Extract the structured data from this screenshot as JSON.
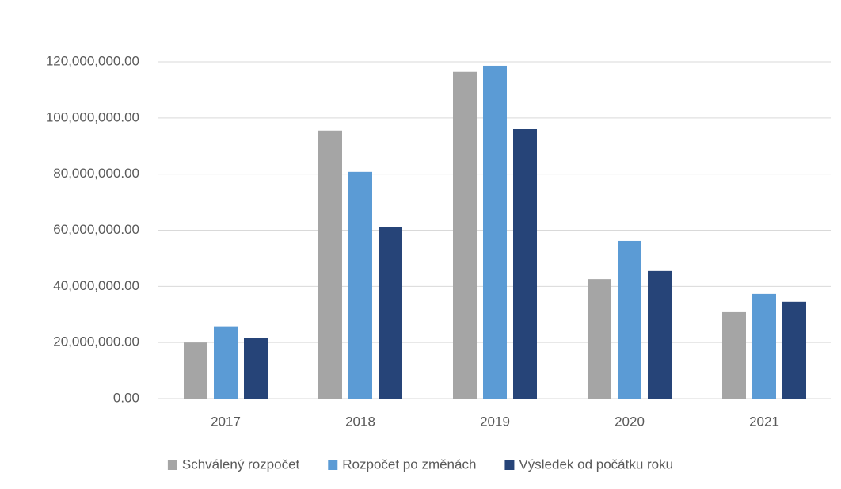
{
  "chart_data": {
    "type": "bar",
    "categories": [
      "2017",
      "2018",
      "2019",
      "2020",
      "2021"
    ],
    "series": [
      {
        "name": "Schválený rozpočet",
        "color": "#a5a5a5",
        "values": [
          20000000,
          95500000,
          116400000,
          42600000,
          30800000
        ]
      },
      {
        "name": "Rozpočet po změnách",
        "color": "#5b9bd5",
        "values": [
          25800000,
          80800000,
          118600000,
          56200000,
          37300000
        ]
      },
      {
        "name": "Výsledek od počátku roku",
        "color": "#264478",
        "values": [
          21700000,
          61000000,
          96000000,
          45500000,
          34500000
        ]
      }
    ],
    "ylim": [
      0,
      120000000
    ],
    "yticks": [
      {
        "value": 0,
        "label": "0.00"
      },
      {
        "value": 20000000,
        "label": "20,000,000.00"
      },
      {
        "value": 40000000,
        "label": "40,000,000.00"
      },
      {
        "value": 60000000,
        "label": "60,000,000.00"
      },
      {
        "value": 80000000,
        "label": "80,000,000.00"
      },
      {
        "value": 100000000,
        "label": "100,000,000.00"
      },
      {
        "value": 120000000,
        "label": "120,000,000.00"
      }
    ],
    "grid": true,
    "legend": "bottom"
  }
}
